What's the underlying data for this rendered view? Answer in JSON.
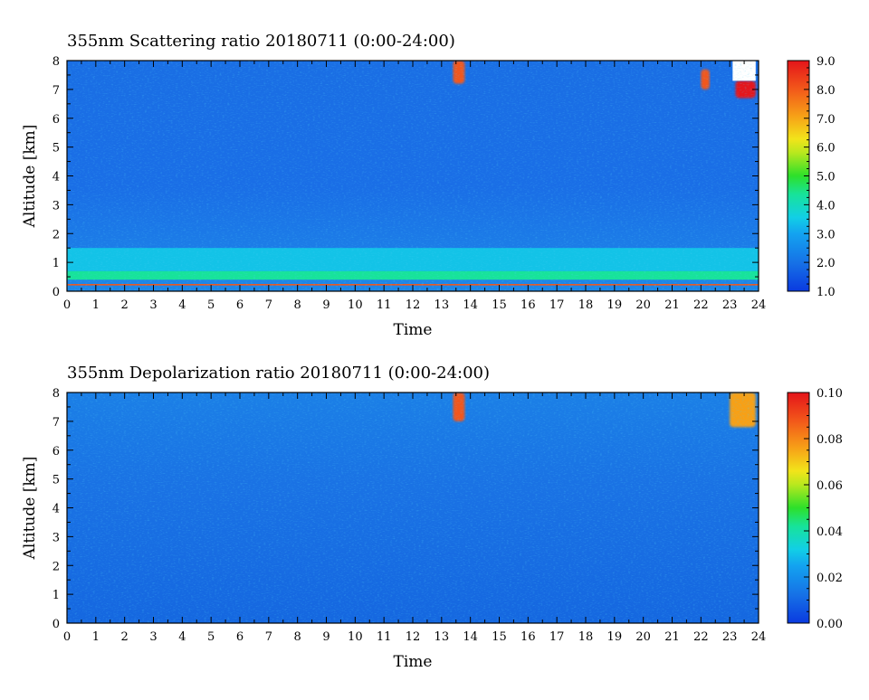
{
  "chart_data": [
    {
      "type": "heatmap",
      "title": "355nm Scattering ratio  20180711 (0:00-24:00)",
      "xlabel": "Time",
      "ylabel": "Altitude [km]",
      "xlim": [
        0,
        24
      ],
      "ylim": [
        0,
        8
      ],
      "x_ticks": [
        "0",
        "1",
        "2",
        "3",
        "4",
        "5",
        "6",
        "7",
        "8",
        "9",
        "10",
        "11",
        "12",
        "13",
        "14",
        "15",
        "16",
        "17",
        "18",
        "19",
        "20",
        "21",
        "22",
        "23",
        "24"
      ],
      "y_ticks": [
        "0",
        "1",
        "2",
        "3",
        "4",
        "5",
        "6",
        "7",
        "8"
      ],
      "colorbar": {
        "min": 1.0,
        "max": 9.0,
        "ticks": [
          "1.0",
          "2.0",
          "3.0",
          "4.0",
          "5.0",
          "6.0",
          "7.0",
          "8.0",
          "9.0"
        ]
      },
      "features": [
        {
          "name": "surface layer",
          "time": [
            0,
            24
          ],
          "altitude": [
            0.2,
            0.25
          ],
          "value": 8.0
        },
        {
          "name": "boundary layer",
          "time": [
            0,
            24
          ],
          "altitude": [
            0.4,
            0.7
          ],
          "value": 4.5
        },
        {
          "name": "residual layer",
          "time": [
            0,
            24
          ],
          "altitude": [
            0.7,
            1.5
          ],
          "value": 3.3
        },
        {
          "name": "cirrus cloud",
          "time": [
            13.4,
            13.8
          ],
          "altitude": [
            7.2,
            8.0
          ],
          "value": 8.5
        },
        {
          "name": "cloud",
          "time": [
            22.0,
            22.3
          ],
          "altitude": [
            7.0,
            7.7
          ],
          "value": 8.0
        },
        {
          "name": "cloud",
          "time": [
            23.2,
            23.9
          ],
          "altitude": [
            6.7,
            7.3
          ],
          "value": 9.0
        },
        {
          "name": "no data",
          "time": [
            23.1,
            23.9
          ],
          "altitude": [
            7.3,
            8.0
          ],
          "value": null
        }
      ]
    },
    {
      "type": "heatmap",
      "title": "355nm Depolarization ratio  20180711 (0:00-24:00)",
      "xlabel": "Time",
      "ylabel": "Altitude [km]",
      "xlim": [
        0,
        24
      ],
      "ylim": [
        0,
        8
      ],
      "x_ticks": [
        "0",
        "1",
        "2",
        "3",
        "4",
        "5",
        "6",
        "7",
        "8",
        "9",
        "10",
        "11",
        "12",
        "13",
        "14",
        "15",
        "16",
        "17",
        "18",
        "19",
        "20",
        "21",
        "22",
        "23",
        "24"
      ],
      "y_ticks": [
        "0",
        "1",
        "2",
        "3",
        "4",
        "5",
        "6",
        "7",
        "8"
      ],
      "colorbar": {
        "min": 0.0,
        "max": 0.1,
        "ticks": [
          "0.00",
          "0.02",
          "0.04",
          "0.06",
          "0.08",
          "0.10"
        ]
      },
      "features": [
        {
          "name": "background",
          "time": [
            0,
            24
          ],
          "altitude": [
            0,
            8
          ],
          "value": 0.01
        },
        {
          "name": "cirrus cloud",
          "time": [
            13.4,
            13.8
          ],
          "altitude": [
            7.0,
            8.0
          ],
          "value": 0.09
        },
        {
          "name": "cloud",
          "time": [
            23.0,
            23.9
          ],
          "altitude": [
            6.8,
            8.0
          ],
          "value": 0.08
        }
      ]
    }
  ]
}
